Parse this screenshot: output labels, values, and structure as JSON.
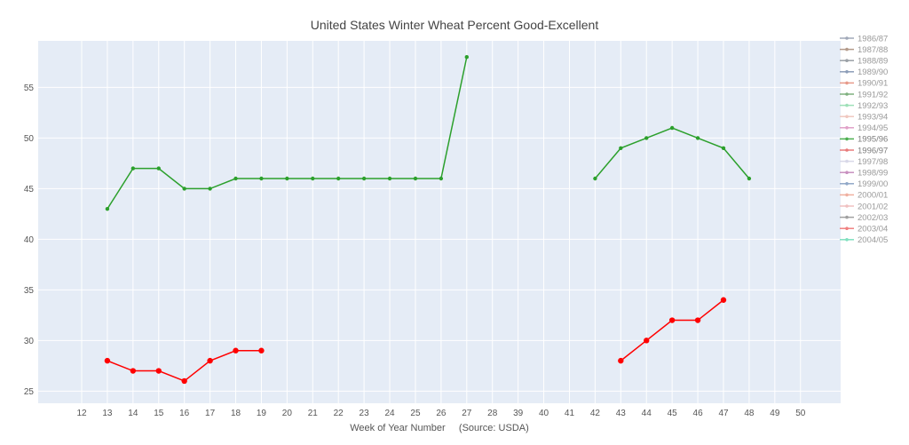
{
  "chart_data": {
    "type": "line",
    "title": "United States Winter Wheat Percent Good-Excellent",
    "xlabel": "Week of Year Number     (Source: USDA)",
    "ylabel": "",
    "categories": [
      "12",
      "13",
      "14",
      "15",
      "16",
      "17",
      "18",
      "19",
      "20",
      "21",
      "22",
      "23",
      "24",
      "25",
      "26",
      "27",
      "28",
      "39",
      "40",
      "41",
      "42",
      "43",
      "44",
      "45",
      "46",
      "47",
      "48",
      "49",
      "50"
    ],
    "y_ticks": [
      25,
      30,
      35,
      40,
      45,
      50,
      55
    ],
    "ylim": [
      23.8,
      59.6
    ],
    "grid": true,
    "legend_position": "right",
    "series": [
      {
        "name": "1995/96",
        "color": "#2ca02c",
        "segments": [
          {
            "x": [
              "13",
              "14",
              "15",
              "16",
              "17",
              "18",
              "19",
              "20",
              "21",
              "22",
              "23",
              "24",
              "25",
              "26",
              "27"
            ],
            "y": [
              43,
              47,
              47,
              45,
              45,
              46,
              46,
              46,
              46,
              46,
              46,
              46,
              46,
              46,
              58
            ]
          },
          {
            "x": [
              "42",
              "43",
              "44",
              "45",
              "46",
              "47",
              "48"
            ],
            "y": [
              46,
              49,
              50,
              51,
              50,
              49,
              46
            ]
          }
        ]
      },
      {
        "name": "1996/97",
        "color": "#ff0000",
        "segments": [
          {
            "x": [
              "13",
              "14",
              "15",
              "16",
              "17",
              "18",
              "19"
            ],
            "y": [
              28,
              27,
              27,
              26,
              28,
              29,
              29
            ]
          },
          {
            "x": [
              "43",
              "44",
              "45",
              "46",
              "47"
            ],
            "y": [
              28,
              30,
              32,
              32,
              34
            ]
          }
        ]
      }
    ]
  },
  "legend": {
    "items": [
      {
        "label": "1986/87",
        "color": "#a0a8b8"
      },
      {
        "label": "1987/88",
        "color": "#b39a8a"
      },
      {
        "label": "1988/89",
        "color": "#9aa0a6"
      },
      {
        "label": "1989/90",
        "color": "#8c9db8"
      },
      {
        "label": "1990/91",
        "color": "#e79a8a"
      },
      {
        "label": "1991/92",
        "color": "#7fb07f"
      },
      {
        "label": "1992/93",
        "color": "#9ee0b8"
      },
      {
        "label": "1993/94",
        "color": "#f0c8c0"
      },
      {
        "label": "1994/95",
        "color": "#e0a0c8"
      },
      {
        "label": "1995/96",
        "color": "#4caf50"
      },
      {
        "label": "1996/97",
        "color": "#e87a7a"
      },
      {
        "label": "1997/98",
        "color": "#d8d8e8"
      },
      {
        "label": "1998/99",
        "color": "#c890c0"
      },
      {
        "label": "1999/00",
        "color": "#90a8c8"
      },
      {
        "label": "2000/01",
        "color": "#f0b0a0"
      },
      {
        "label": "2001/02",
        "color": "#f0c0c0"
      },
      {
        "label": "2002/03",
        "color": "#a0a0a0"
      },
      {
        "label": "2003/04",
        "color": "#f08080"
      },
      {
        "label": "2004/05",
        "color": "#80e0c0"
      }
    ]
  }
}
